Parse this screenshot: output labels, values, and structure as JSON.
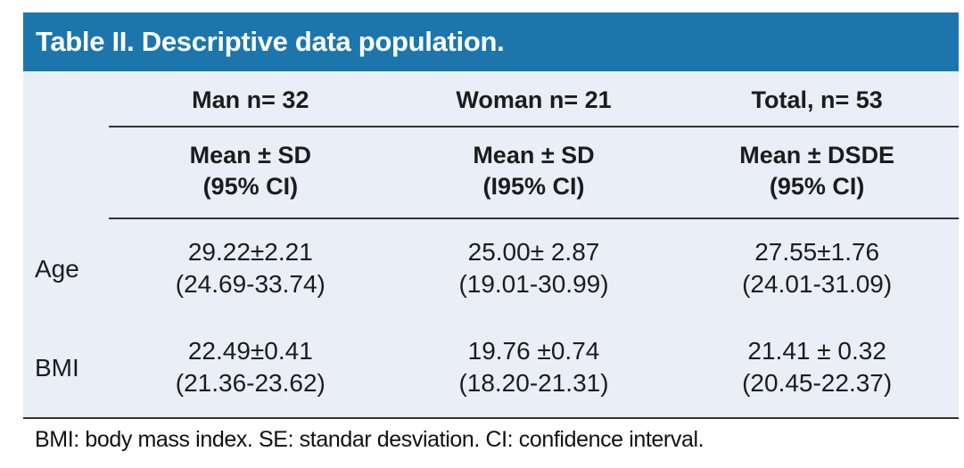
{
  "chart_data": {
    "type": "table",
    "title": "Table II. Descriptive data population.",
    "columns": [
      "Man n= 32",
      "Woman n= 21",
      "Total, n= 53"
    ],
    "measure_headers": [
      {
        "line1": "Mean ± SD",
        "line2": "(95% CI)"
      },
      {
        "line1": "Mean ± SD",
        "line2": "(I95% CI)"
      },
      {
        "line1": "Mean ± DSDE",
        "line2": "(95% CI)"
      }
    ],
    "rows": [
      {
        "label": "Age",
        "cells": [
          {
            "mean_sd": "29.22±2.21",
            "ci": "(24.69-33.74)"
          },
          {
            "mean_sd": "25.00± 2.87",
            "ci": "(19.01-30.99)"
          },
          {
            "mean_sd": "27.55±1.76",
            "ci": "(24.01-31.09)"
          }
        ]
      },
      {
        "label": "BMI",
        "cells": [
          {
            "mean_sd": "22.49±0.41",
            "ci": "(21.36-23.62)"
          },
          {
            "mean_sd": "19.76 ±0.74",
            "ci": "(18.20-21.31)"
          },
          {
            "mean_sd": "21.41 ± 0.32",
            "ci": "(20.45-22.37)"
          }
        ]
      }
    ],
    "numeric": {
      "age": {
        "man": {
          "mean": 29.22,
          "sd": 2.21,
          "ci": [
            24.69,
            33.74
          ]
        },
        "woman": {
          "mean": 25.0,
          "sd": 2.87,
          "ci": [
            19.01,
            30.99
          ]
        },
        "total": {
          "mean": 27.55,
          "sd": 1.76,
          "ci": [
            24.01,
            31.09
          ]
        }
      },
      "bmi": {
        "man": {
          "mean": 22.49,
          "sd": 0.41,
          "ci": [
            21.36,
            23.62
          ]
        },
        "woman": {
          "mean": 19.76,
          "sd": 0.74,
          "ci": [
            18.2,
            21.31
          ]
        },
        "total": {
          "mean": 21.41,
          "sd": 0.32,
          "ci": [
            20.45,
            22.37
          ]
        }
      }
    },
    "footnote": "BMI: body mass index. SE: standar desviation. CI: confidence interval."
  },
  "colors": {
    "title_bar_bg": "#1C76AC",
    "title_text": "#FFFFFF",
    "table_bg": "#E9EEF7",
    "rule": "#333333",
    "text": "#1C1C1C"
  }
}
